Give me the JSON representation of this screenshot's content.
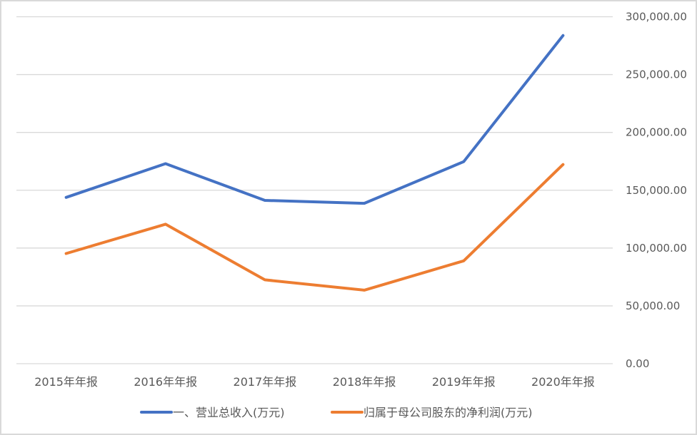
{
  "chart_data": {
    "type": "line",
    "title": "",
    "xlabel": "",
    "ylabel": "",
    "categories": [
      "2015年年报",
      "2016年年报",
      "2017年年报",
      "2018年年报",
      "2019年年报",
      "2020年年报"
    ],
    "series": [
      {
        "name": "一、营业总收入(万元)",
        "color": "#4472c4",
        "values": [
          143800,
          173000,
          141200,
          138700,
          174700,
          283800
        ]
      },
      {
        "name": "归属于母公司股东的净利润(万元)",
        "color": "#ed7d31",
        "values": [
          95300,
          120600,
          72500,
          63600,
          88900,
          172200
        ]
      }
    ],
    "ylim": [
      0,
      300000
    ],
    "yticks": [
      0,
      50000,
      100000,
      150000,
      200000,
      250000,
      300000
    ],
    "ytick_labels": [
      "0.00",
      "50,000.00",
      "100,000.00",
      "150,000.00",
      "200,000.00",
      "250,000.00",
      "300,000.00"
    ],
    "y_axis_position": "right",
    "grid": true,
    "legend_position": "bottom"
  }
}
